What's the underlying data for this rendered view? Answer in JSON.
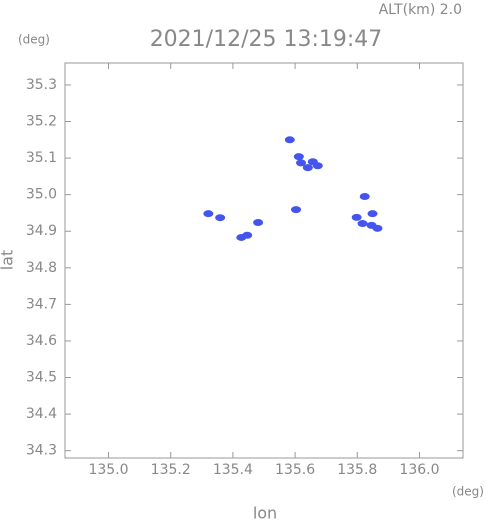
{
  "chart_data": {
    "type": "scatter",
    "title": "2021/12/25 13:19:47",
    "altitude_label": "ALT(km) 2.0",
    "y_unit": "(deg)",
    "x_unit": "(deg)",
    "xlabel": "lon",
    "ylabel": "lat",
    "xlim": [
      134.86,
      136.14
    ],
    "ylim": [
      34.28,
      35.36
    ],
    "xticks": [
      {
        "value": 135,
        "label": "135.0"
      },
      135.2,
      135.4,
      135.6,
      135.8,
      {
        "value": 136,
        "label": "136.0"
      }
    ],
    "yticks": [
      34.3,
      34.4,
      34.5,
      34.6,
      34.7,
      34.8,
      34.9,
      {
        "value": 35,
        "label": "35.0"
      },
      35.1,
      35.2,
      35.3
    ],
    "color": "#4455ee",
    "x": [
      135.583,
      135.612,
      135.619,
      135.657,
      135.673,
      135.641,
      135.603,
      135.321,
      135.359,
      135.446,
      135.427,
      135.481,
      135.824,
      135.798,
      135.817,
      135.846,
      135.865,
      135.849
    ],
    "y": [
      35.15,
      35.104,
      35.087,
      35.09,
      35.079,
      35.074,
      34.959,
      34.948,
      34.937,
      34.889,
      34.883,
      34.924,
      34.995,
      34.938,
      34.921,
      34.916,
      34.908,
      34.948
    ]
  }
}
